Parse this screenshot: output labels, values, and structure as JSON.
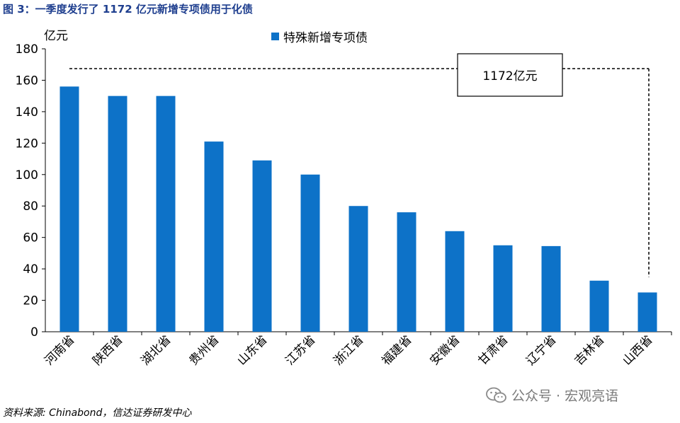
{
  "figure": {
    "title": "图 3：一季度发行了 1172 亿元新增专项债用于化债",
    "unit": "亿元",
    "source": "资料来源: Chinabond，信达证券研发中心",
    "watermark": "公众号 · 宏观亮语",
    "annotation": "1172亿元"
  },
  "colors": {
    "bar": "#0d72c8",
    "title": "#1f3f8f"
  },
  "chart_data": {
    "type": "bar",
    "categories": [
      "河南省",
      "陕西省",
      "湖北省",
      "贵州省",
      "山东省",
      "江苏省",
      "浙江省",
      "福建省",
      "安徽省",
      "甘肃省",
      "辽宁省",
      "吉林省",
      "山西省"
    ],
    "series": [
      {
        "name": "特殊新增专项债",
        "values": [
          156,
          150,
          150,
          121,
          109,
          100,
          80,
          76,
          64,
          55,
          54.5,
          32.5,
          25
        ]
      }
    ],
    "ylabel": "亿元",
    "xlabel": "",
    "ylim": [
      0,
      180
    ],
    "yticks": [
      0,
      20,
      40,
      60,
      80,
      100,
      120,
      140,
      160,
      180
    ],
    "grid": false,
    "legend_position": "top-center",
    "annotation": {
      "text": "1172亿元",
      "total": 1172
    }
  }
}
